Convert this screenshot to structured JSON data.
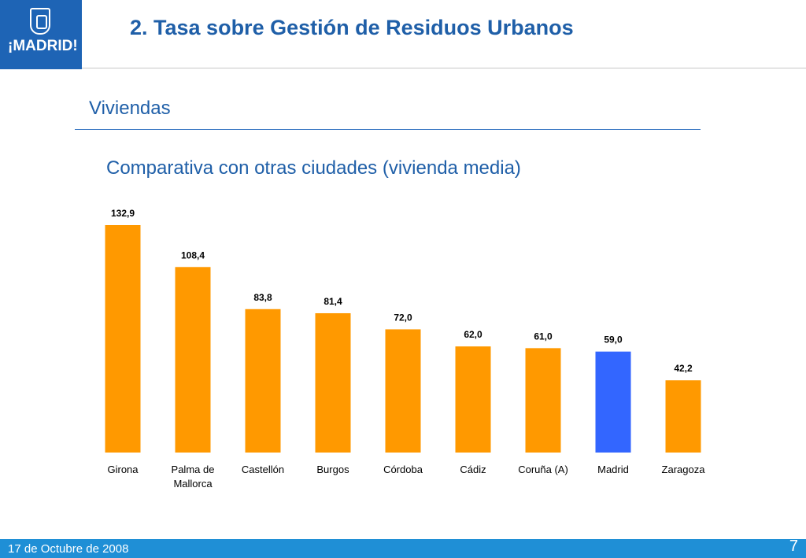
{
  "header": {
    "logo_text": "¡MADRID!",
    "title": "2. Tasa sobre Gestión de Residuos Urbanos"
  },
  "section": {
    "title": "Viviendas"
  },
  "footer": {
    "date": "17 de Octubre de 2008",
    "page_number": "7"
  },
  "colors": {
    "bar": "#ff9900",
    "highlight_bar": "#3366ff",
    "title": "#1f5fa8",
    "footer": "#1f8fd6"
  },
  "chart_data": {
    "type": "bar",
    "title": "Comparativa con otras ciudades (vivienda media)",
    "categories": [
      [
        "Girona"
      ],
      [
        "Palma de",
        "Mallorca"
      ],
      [
        "Castellón"
      ],
      [
        "Burgos"
      ],
      [
        "Córdoba"
      ],
      [
        "Cádiz"
      ],
      [
        "Coruña (A)"
      ],
      [
        "Madrid"
      ],
      [
        "Zaragoza"
      ]
    ],
    "values": [
      132.9,
      108.4,
      83.8,
      81.4,
      72.0,
      62.0,
      61.0,
      59.0,
      42.2
    ],
    "value_labels": [
      "132,9",
      "108,4",
      "83,8",
      "81,4",
      "72,0",
      "62,0",
      "61,0",
      "59,0",
      "42,2"
    ],
    "highlight_category": "Madrid",
    "ylim": [
      0,
      132.9
    ],
    "grid": false,
    "legend": false
  }
}
